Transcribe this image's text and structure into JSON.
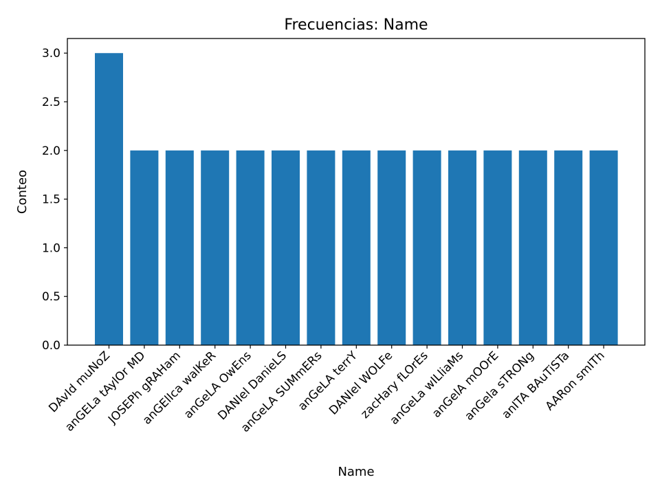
{
  "chart_data": {
    "type": "bar",
    "title": "Frecuencias: Name",
    "xlabel": "Name",
    "ylabel": "Conteo",
    "ylim": [
      0,
      3.15
    ],
    "yticks": [
      "0.0",
      "0.5",
      "1.0",
      "1.5",
      "2.0",
      "2.5",
      "3.0"
    ],
    "ytick_values": [
      0,
      0.5,
      1.0,
      1.5,
      2.0,
      2.5,
      3.0
    ],
    "grid": false,
    "bar_color": "#1f77b4",
    "categories": [
      "DAvId muNoZ",
      "anGELa tAylOr MD",
      "JOSEPh gRAHam",
      "anGElIca walKeR",
      "anGeLA OwEns",
      "DANIel DanieLS",
      "anGeLA SUMmERs",
      "anGeLA terrY",
      "DANIel WOLFe",
      "zacHary fLOrEs",
      "anGeLa wILliaMs",
      "anGelA mOOrE",
      "anGela sTRONg",
      "anITA BAuTiSTa",
      "AARon smITh"
    ],
    "values": [
      3,
      2,
      2,
      2,
      2,
      2,
      2,
      2,
      2,
      2,
      2,
      2,
      2,
      2,
      2
    ]
  }
}
